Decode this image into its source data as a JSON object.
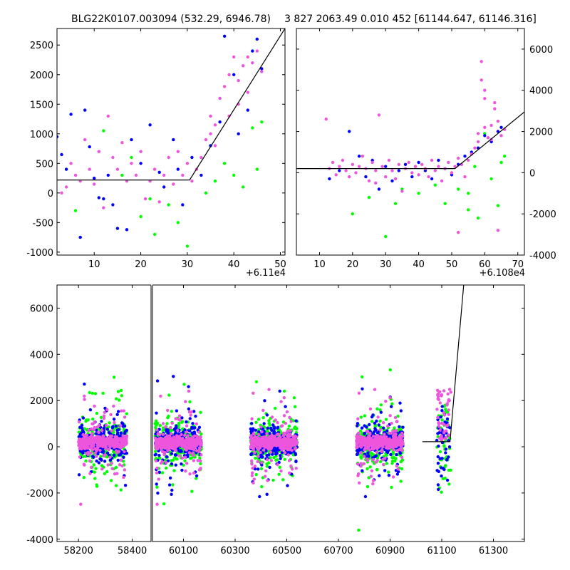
{
  "colors": {
    "green": "#00ff00",
    "blue": "#0000ff",
    "magenta": "#ee55dd",
    "model": "#000000",
    "axis": "#000000"
  },
  "chart_data": [
    {
      "id": "top-left",
      "type": "scatter",
      "title": "BLG22K0107.003094 (532.29, 6946.78)",
      "xlim": [
        2,
        51
      ],
      "ylim": [
        -1050,
        2780
      ],
      "xticks": [
        10,
        20,
        30,
        40,
        50
      ],
      "yticks": [
        -1000,
        -500,
        0,
        500,
        1000,
        1500,
        2000,
        2500
      ],
      "x_offset_label": "+6.11e4",
      "y_axis_side": "left",
      "model_line": [
        [
          2,
          220
        ],
        [
          30.5,
          220
        ],
        [
          51,
          2780
        ]
      ],
      "series": [
        {
          "name": "green",
          "color": "#00ff00",
          "points": [
            [
              6,
              -300
            ],
            [
              12,
              1050
            ],
            [
              16,
              300
            ],
            [
              18,
              600
            ],
            [
              20,
              -400
            ],
            [
              22,
              -100
            ],
            [
              23,
              -700
            ],
            [
              26,
              -200
            ],
            [
              28,
              -500
            ],
            [
              30,
              -900
            ],
            [
              34,
              0
            ],
            [
              36,
              200
            ],
            [
              38,
              500
            ],
            [
              40,
              300
            ],
            [
              42,
              100
            ],
            [
              44,
              1100
            ],
            [
              45,
              400
            ],
            [
              46,
              1200
            ]
          ]
        },
        {
          "name": "blue",
          "color": "#0000ff",
          "points": [
            [
              2,
              950
            ],
            [
              3,
              650
            ],
            [
              4,
              400
            ],
            [
              5,
              1330
            ],
            [
              7,
              -750
            ],
            [
              8,
              1400
            ],
            [
              9,
              780
            ],
            [
              10,
              250
            ],
            [
              11,
              -80
            ],
            [
              12,
              -100
            ],
            [
              13,
              300
            ],
            [
              14,
              -200
            ],
            [
              15,
              -600
            ],
            [
              17,
              -620
            ],
            [
              18,
              900
            ],
            [
              20,
              500
            ],
            [
              22,
              1150
            ],
            [
              24,
              350
            ],
            [
              25,
              100
            ],
            [
              27,
              900
            ],
            [
              28,
              400
            ],
            [
              29,
              -200
            ],
            [
              31,
              600
            ],
            [
              33,
              300
            ],
            [
              35,
              800
            ],
            [
              37,
              1200
            ],
            [
              38,
              2650
            ],
            [
              40,
              2000
            ],
            [
              41,
              1000
            ],
            [
              43,
              1400
            ],
            [
              44,
              2400
            ],
            [
              45,
              2600
            ],
            [
              46,
              2100
            ]
          ]
        },
        {
          "name": "magenta",
          "color": "#ee55dd",
          "points": [
            [
              3,
              0
            ],
            [
              4,
              100
            ],
            [
              5,
              500
            ],
            [
              6,
              300
            ],
            [
              7,
              200
            ],
            [
              8,
              900
            ],
            [
              9,
              400
            ],
            [
              10,
              150
            ],
            [
              11,
              700
            ],
            [
              12,
              -250
            ],
            [
              13,
              1300
            ],
            [
              14,
              600
            ],
            [
              15,
              400
            ],
            [
              16,
              850
            ],
            [
              17,
              200
            ],
            [
              18,
              500
            ],
            [
              19,
              300
            ],
            [
              20,
              700
            ],
            [
              21,
              -100
            ],
            [
              22,
              200
            ],
            [
              23,
              400
            ],
            [
              24,
              -150
            ],
            [
              25,
              300
            ],
            [
              26,
              600
            ],
            [
              27,
              150
            ],
            [
              28,
              700
            ],
            [
              29,
              300
            ],
            [
              30,
              500
            ],
            [
              31,
              200
            ],
            [
              32,
              400
            ],
            [
              33,
              600
            ],
            [
              34,
              900
            ],
            [
              35,
              1300
            ],
            [
              36,
              1150
            ],
            [
              37,
              1600
            ],
            [
              38,
              1800
            ],
            [
              39,
              2000
            ],
            [
              40,
              2300
            ],
            [
              41,
              1900
            ],
            [
              42,
              2150
            ],
            [
              43,
              1700
            ],
            [
              44,
              2200
            ],
            [
              45,
              2400
            ],
            [
              46,
              2050
            ],
            [
              39,
              1300
            ],
            [
              41,
              1500
            ],
            [
              43,
              2300
            ],
            [
              36,
              800
            ],
            [
              35,
              1000
            ]
          ]
        }
      ]
    },
    {
      "id": "top-right",
      "type": "scatter",
      "title": "3 827 2063.49 0.010 452 [61144.647, 61146.316]",
      "xlim": [
        3,
        72
      ],
      "ylim": [
        -4000,
        7000
      ],
      "xticks": [
        10,
        20,
        30,
        40,
        50,
        60,
        70
      ],
      "yticks": [
        -4000,
        -2000,
        0,
        2000,
        4000,
        6000
      ],
      "x_offset_label": "+6.108e4",
      "y_axis_side": "right",
      "model_line": [
        [
          3,
          200
        ],
        [
          51,
          200
        ],
        [
          72,
          2950
        ]
      ],
      "series": [
        {
          "name": "green",
          "color": "#00ff00",
          "points": [
            [
              20,
              -2000
            ],
            [
              25,
              -1200
            ],
            [
              30,
              -3100
            ],
            [
              33,
              -1500
            ],
            [
              35,
              -800
            ],
            [
              40,
              -1000
            ],
            [
              45,
              -600
            ],
            [
              48,
              -1500
            ],
            [
              52,
              -800
            ],
            [
              55,
              -1800
            ],
            [
              58,
              -2200
            ],
            [
              60,
              1900
            ],
            [
              62,
              -300
            ],
            [
              64,
              -1600
            ],
            [
              65,
              500
            ],
            [
              66,
              800
            ],
            [
              55,
              -1000
            ],
            [
              57,
              300
            ]
          ]
        },
        {
          "name": "blue",
          "color": "#0000ff",
          "points": [
            [
              13,
              -300
            ],
            [
              16,
              100
            ],
            [
              19,
              2000
            ],
            [
              22,
              800
            ],
            [
              24,
              -200
            ],
            [
              26,
              600
            ],
            [
              28,
              -800
            ],
            [
              30,
              300
            ],
            [
              32,
              -400
            ],
            [
              34,
              100
            ],
            [
              36,
              400
            ],
            [
              38,
              -200
            ],
            [
              40,
              500
            ],
            [
              42,
              100
            ],
            [
              44,
              -300
            ],
            [
              46,
              600
            ],
            [
              48,
              200
            ],
            [
              50,
              -100
            ],
            [
              52,
              400
            ],
            [
              54,
              800
            ],
            [
              56,
              1000
            ],
            [
              58,
              1200
            ],
            [
              60,
              1800
            ],
            [
              62,
              1500
            ],
            [
              64,
              2000
            ],
            [
              65,
              2200
            ]
          ]
        },
        {
          "name": "magenta",
          "color": "#ee55dd",
          "points": [
            [
              12,
              2600
            ],
            [
              13,
              200
            ],
            [
              14,
              500
            ],
            [
              15,
              -100
            ],
            [
              16,
              300
            ],
            [
              17,
              600
            ],
            [
              18,
              100
            ],
            [
              19,
              -200
            ],
            [
              20,
              400
            ],
            [
              21,
              0
            ],
            [
              22,
              300
            ],
            [
              23,
              800
            ],
            [
              24,
              200
            ],
            [
              25,
              -400
            ],
            [
              26,
              500
            ],
            [
              27,
              100
            ],
            [
              28,
              2800
            ],
            [
              29,
              300
            ],
            [
              30,
              -200
            ],
            [
              31,
              600
            ],
            [
              32,
              100
            ],
            [
              33,
              -300
            ],
            [
              34,
              400
            ],
            [
              35,
              -900
            ],
            [
              36,
              200
            ],
            [
              37,
              500
            ],
            [
              38,
              0
            ],
            [
              39,
              300
            ],
            [
              40,
              -100
            ],
            [
              41,
              400
            ],
            [
              42,
              200
            ],
            [
              43,
              -200
            ],
            [
              44,
              600
            ],
            [
              45,
              100
            ],
            [
              46,
              300
            ],
            [
              47,
              -400
            ],
            [
              48,
              200
            ],
            [
              49,
              500
            ],
            [
              50,
              0
            ],
            [
              51,
              300
            ],
            [
              52,
              700
            ],
            [
              53,
              400
            ],
            [
              54,
              -200
            ],
            [
              55,
              600
            ],
            [
              56,
              900
            ],
            [
              57,
              1200
            ],
            [
              58,
              1500
            ],
            [
              59,
              5400
            ],
            [
              59,
              4500
            ],
            [
              60,
              4000
            ],
            [
              60,
              3600
            ],
            [
              61,
              1700
            ],
            [
              62,
              2300
            ],
            [
              63,
              3400
            ],
            [
              63,
              3100
            ],
            [
              64,
              2500
            ],
            [
              65,
              1800
            ],
            [
              66,
              2100
            ],
            [
              58,
              1900
            ],
            [
              60,
              2200
            ],
            [
              62,
              1600
            ],
            [
              52,
              -2900
            ],
            [
              64,
              -2800
            ],
            [
              27,
              -500
            ]
          ]
        }
      ]
    },
    {
      "id": "bottom",
      "type": "scatter",
      "title": "",
      "broken_axis": true,
      "segments": [
        {
          "xlim": [
            58120,
            58470
          ],
          "xticks": [
            58200,
            58400
          ],
          "clusters": [
            58290
          ]
        },
        {
          "xlim": [
            59980,
            61420
          ],
          "xticks": [
            60100,
            60300,
            60500,
            60700,
            60900,
            61100,
            61300
          ],
          "clusters": [
            60080,
            60450,
            60860
          ]
        }
      ],
      "ylim": [
        -4100,
        7000
      ],
      "yticks": [
        -4000,
        -2000,
        0,
        2000,
        4000,
        6000
      ],
      "model_line": [
        [
          61025,
          220
        ],
        [
          61132,
          220
        ],
        [
          61185,
          7000
        ]
      ],
      "late_cluster": {
        "x": [
          61080,
          61135
        ],
        "color_order": [
          "green",
          "blue",
          "magenta"
        ]
      },
      "series_names": [
        "green",
        "blue",
        "magenta"
      ]
    }
  ]
}
